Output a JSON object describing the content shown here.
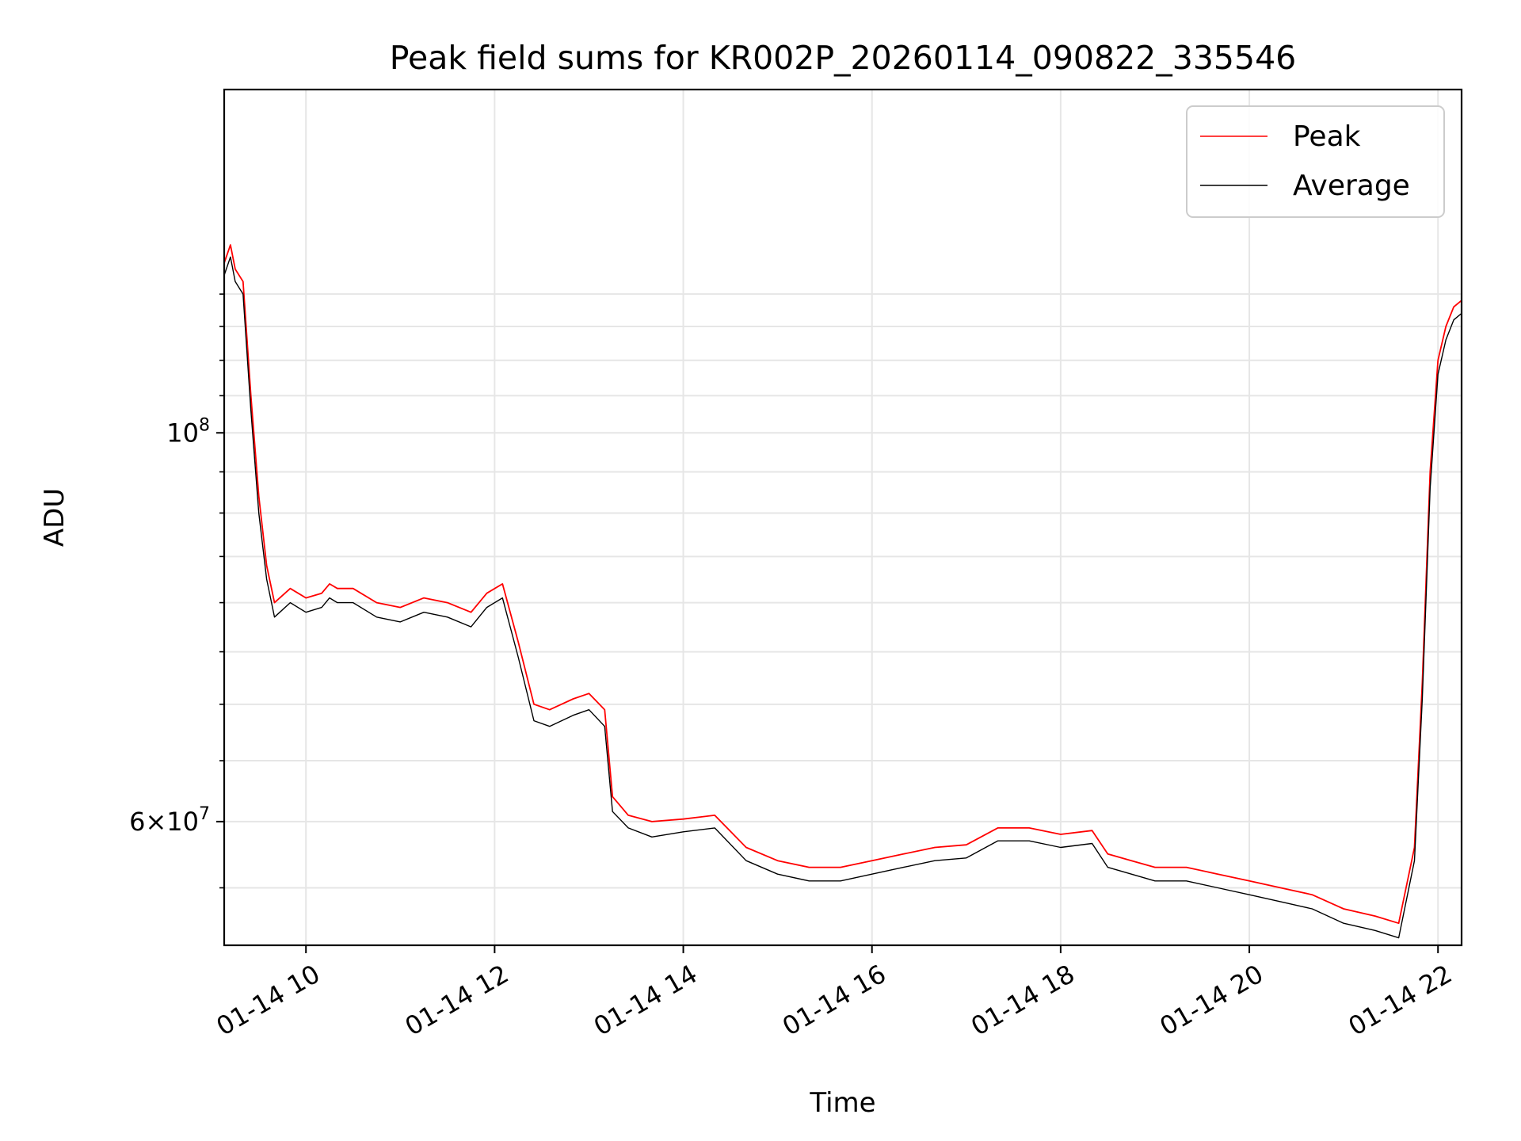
{
  "chart_data": {
    "type": "line",
    "title": "Peak field sums for KR002P_20260114_090822_335546",
    "xlabel": "Time",
    "ylabel": "ADU",
    "yscale": "log",
    "xlim": [
      "2026-01-14 09:08",
      "2026-01-14 22:15"
    ],
    "ylim": [
      51000000,
      157000000
    ],
    "grid": true,
    "legend_position": "top-right",
    "x_ticks": [
      {
        "value": "2026-01-14 10:00",
        "label": "01-14 10"
      },
      {
        "value": "2026-01-14 12:00",
        "label": "01-14 12"
      },
      {
        "value": "2026-01-14 14:00",
        "label": "01-14 14"
      },
      {
        "value": "2026-01-14 16:00",
        "label": "01-14 16"
      },
      {
        "value": "2026-01-14 18:00",
        "label": "01-14 18"
      },
      {
        "value": "2026-01-14 20:00",
        "label": "01-14 20"
      },
      {
        "value": "2026-01-14 22:00",
        "label": "01-14 22"
      }
    ],
    "y_major_ticks": [
      {
        "value": 100000000,
        "base": "10",
        "exp": "8"
      },
      {
        "value": 60000000,
        "mant": "6",
        "base": "10",
        "exp": "7"
      }
    ],
    "y_minor_ticks": [
      55000000,
      65000000,
      70000000,
      75000000,
      80000000,
      85000000,
      90000000,
      95000000,
      105000000,
      110000000,
      115000000,
      120000000
    ],
    "series": [
      {
        "name": "Peak",
        "color": "#ff0000",
        "x": [
          "2026-01-14 09:08",
          "2026-01-14 09:12",
          "2026-01-14 09:15",
          "2026-01-14 09:20",
          "2026-01-14 09:25",
          "2026-01-14 09:30",
          "2026-01-14 09:35",
          "2026-01-14 09:40",
          "2026-01-14 09:50",
          "2026-01-14 10:00",
          "2026-01-14 10:10",
          "2026-01-14 10:15",
          "2026-01-14 10:20",
          "2026-01-14 10:30",
          "2026-01-14 10:45",
          "2026-01-14 11:00",
          "2026-01-14 11:15",
          "2026-01-14 11:30",
          "2026-01-14 11:45",
          "2026-01-14 11:55",
          "2026-01-14 12:05",
          "2026-01-14 12:15",
          "2026-01-14 12:25",
          "2026-01-14 12:35",
          "2026-01-14 12:50",
          "2026-01-14 13:00",
          "2026-01-14 13:10",
          "2026-01-14 13:15",
          "2026-01-14 13:25",
          "2026-01-14 13:40",
          "2026-01-14 14:00",
          "2026-01-14 14:20",
          "2026-01-14 14:40",
          "2026-01-14 15:00",
          "2026-01-14 15:20",
          "2026-01-14 15:40",
          "2026-01-14 16:00",
          "2026-01-14 16:20",
          "2026-01-14 16:40",
          "2026-01-14 17:00",
          "2026-01-14 17:20",
          "2026-01-14 17:40",
          "2026-01-14 18:00",
          "2026-01-14 18:20",
          "2026-01-14 18:30",
          "2026-01-14 18:45",
          "2026-01-14 19:00",
          "2026-01-14 19:20",
          "2026-01-14 19:40",
          "2026-01-14 20:00",
          "2026-01-14 20:20",
          "2026-01-14 20:40",
          "2026-01-14 21:00",
          "2026-01-14 21:20",
          "2026-01-14 21:35",
          "2026-01-14 21:45",
          "2026-01-14 21:50",
          "2026-01-14 21:55",
          "2026-01-14 22:00",
          "2026-01-14 22:05",
          "2026-01-14 22:10",
          "2026-01-14 22:15"
        ],
        "y": [
          125000000,
          128000000,
          124000000,
          122000000,
          105000000,
          92000000,
          84000000,
          80000000,
          81500000,
          80500000,
          81000000,
          82000000,
          81500000,
          81500000,
          80000000,
          79500000,
          80500000,
          80000000,
          79000000,
          81000000,
          82000000,
          76000000,
          70000000,
          69500000,
          70500000,
          71000000,
          69500000,
          62000000,
          60500000,
          60000000,
          60200000,
          60500000,
          58000000,
          57000000,
          56500000,
          56500000,
          57000000,
          57500000,
          58000000,
          58200000,
          59500000,
          59500000,
          59000000,
          59300000,
          57500000,
          57000000,
          56500000,
          56500000,
          56000000,
          55500000,
          55000000,
          54500000,
          53500000,
          53000000,
          52500000,
          58000000,
          72000000,
          95000000,
          110000000,
          115000000,
          118000000,
          119000000
        ]
      },
      {
        "name": "Average",
        "color": "#000000",
        "x": [
          "2026-01-14 09:08",
          "2026-01-14 09:12",
          "2026-01-14 09:15",
          "2026-01-14 09:20",
          "2026-01-14 09:25",
          "2026-01-14 09:30",
          "2026-01-14 09:35",
          "2026-01-14 09:40",
          "2026-01-14 09:50",
          "2026-01-14 10:00",
          "2026-01-14 10:10",
          "2026-01-14 10:15",
          "2026-01-14 10:20",
          "2026-01-14 10:30",
          "2026-01-14 10:45",
          "2026-01-14 11:00",
          "2026-01-14 11:15",
          "2026-01-14 11:30",
          "2026-01-14 11:45",
          "2026-01-14 11:55",
          "2026-01-14 12:05",
          "2026-01-14 12:15",
          "2026-01-14 12:25",
          "2026-01-14 12:35",
          "2026-01-14 12:50",
          "2026-01-14 13:00",
          "2026-01-14 13:10",
          "2026-01-14 13:15",
          "2026-01-14 13:25",
          "2026-01-14 13:40",
          "2026-01-14 14:00",
          "2026-01-14 14:20",
          "2026-01-14 14:40",
          "2026-01-14 15:00",
          "2026-01-14 15:20",
          "2026-01-14 15:40",
          "2026-01-14 16:00",
          "2026-01-14 16:20",
          "2026-01-14 16:40",
          "2026-01-14 17:00",
          "2026-01-14 17:20",
          "2026-01-14 17:40",
          "2026-01-14 18:00",
          "2026-01-14 18:20",
          "2026-01-14 18:30",
          "2026-01-14 18:45",
          "2026-01-14 19:00",
          "2026-01-14 19:20",
          "2026-01-14 19:40",
          "2026-01-14 20:00",
          "2026-01-14 20:20",
          "2026-01-14 20:40",
          "2026-01-14 21:00",
          "2026-01-14 21:20",
          "2026-01-14 21:35",
          "2026-01-14 21:45",
          "2026-01-14 21:50",
          "2026-01-14 21:55",
          "2026-01-14 22:00",
          "2026-01-14 22:05",
          "2026-01-14 22:10",
          "2026-01-14 22:15"
        ],
        "y": [
          123000000,
          126000000,
          122000000,
          120000000,
          103000000,
          90000000,
          82500000,
          78500000,
          80000000,
          79000000,
          79500000,
          80500000,
          80000000,
          80000000,
          78500000,
          78000000,
          79000000,
          78500000,
          77500000,
          79500000,
          80500000,
          74500000,
          68500000,
          68000000,
          69000000,
          69500000,
          68000000,
          60800000,
          59500000,
          58800000,
          59200000,
          59500000,
          57000000,
          56000000,
          55500000,
          55500000,
          56000000,
          56500000,
          57000000,
          57200000,
          58500000,
          58500000,
          58000000,
          58300000,
          56500000,
          56000000,
          55500000,
          55500000,
          55000000,
          54500000,
          54000000,
          53500000,
          52500000,
          52000000,
          51500000,
          57000000,
          70500000,
          93000000,
          108000000,
          113000000,
          116000000,
          117000000
        ]
      }
    ]
  }
}
